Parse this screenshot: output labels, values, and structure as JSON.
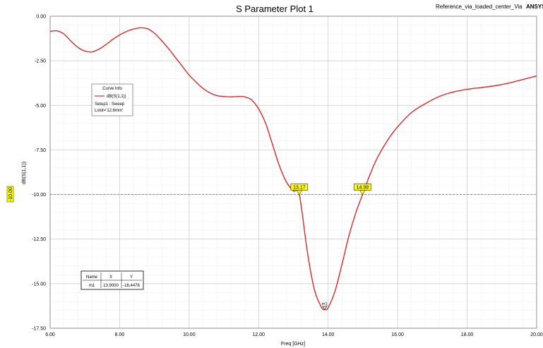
{
  "header": {
    "title": "S Parameter Plot 1",
    "design": "Reference_via_loaded_center_Via",
    "brand": "ANSYS"
  },
  "chart_data": {
    "type": "line",
    "title": "S Parameter Plot 1",
    "xlabel": "Freq [GHz]",
    "ylabel": "dB(S(1,1))",
    "xlim": [
      6.0,
      20.0
    ],
    "ylim": [
      -17.5,
      0.0
    ],
    "x_ticks": [
      "6.00",
      "8.00",
      "10.00",
      "12.00",
      "14.00",
      "16.00",
      "18.00",
      "20.00"
    ],
    "y_ticks": [
      "0.00",
      "-2.50",
      "-5.00",
      "-7.50",
      "-10.00",
      "-12.50",
      "-15.00",
      "-17.50"
    ],
    "grid": true,
    "series": [
      {
        "name": "dB(S(1,1))",
        "color": "#d42a2a",
        "x": [
          6.0,
          6.2,
          6.4,
          6.6,
          6.8,
          7.0,
          7.2,
          7.4,
          7.6,
          7.8,
          8.0,
          8.2,
          8.4,
          8.6,
          8.8,
          9.0,
          9.2,
          9.4,
          9.6,
          9.8,
          10.0,
          10.2,
          10.4,
          10.6,
          10.8,
          11.0,
          11.2,
          11.4,
          11.6,
          11.8,
          12.0,
          12.2,
          12.4,
          12.6,
          12.8,
          13.0,
          13.17,
          13.4,
          13.6,
          13.8,
          13.9,
          14.0,
          14.2,
          14.4,
          14.6,
          14.8,
          14.99,
          15.2,
          15.4,
          15.6,
          15.8,
          16.0,
          16.4,
          16.8,
          17.2,
          17.6,
          18.0,
          18.4,
          18.8,
          19.2,
          19.6,
          20.0
        ],
        "y": [
          -0.85,
          -0.82,
          -1.0,
          -1.4,
          -1.75,
          -1.95,
          -2.0,
          -1.85,
          -1.6,
          -1.3,
          -1.05,
          -0.85,
          -0.72,
          -0.65,
          -0.7,
          -0.95,
          -1.35,
          -1.8,
          -2.3,
          -2.8,
          -3.3,
          -3.7,
          -4.05,
          -4.3,
          -4.45,
          -4.5,
          -4.52,
          -4.5,
          -4.52,
          -4.7,
          -5.2,
          -6.0,
          -7.2,
          -8.4,
          -9.3,
          -9.8,
          -10.0,
          -13.2,
          -15.3,
          -16.3,
          -16.45,
          -16.35,
          -15.4,
          -13.9,
          -12.3,
          -11.0,
          -10.0,
          -8.9,
          -8.0,
          -7.3,
          -6.7,
          -6.2,
          -5.4,
          -4.9,
          -4.5,
          -4.25,
          -4.1,
          -4.0,
          -3.9,
          -3.75,
          -3.55,
          -3.35
        ]
      }
    ],
    "reference_line": {
      "label": "-10.00",
      "y": -10.0
    },
    "crossing_markers": [
      {
        "label": "13.17",
        "x": 13.17,
        "y": -10.0
      },
      {
        "label": "14.99",
        "x": 14.99,
        "y": -10.0
      }
    ],
    "point_marker": {
      "label": "m1",
      "x": 13.9,
      "y": -16.4476
    }
  },
  "curve_info": {
    "title": "Curve Info",
    "series_label": "dB(S(1,1))",
    "setup": "Setup1 : Sweep",
    "param": "Lslot='12.6mm'"
  },
  "marker_table": {
    "headers": [
      "Name",
      "X",
      "Y"
    ],
    "rows": [
      [
        "m1",
        "13.9000",
        "-16.4476"
      ]
    ]
  },
  "colors": {
    "curve": "#d42a2a",
    "marker_fill": "#ffff00",
    "grid_major": "#c8c8c8",
    "grid_minor": "#ececec",
    "ref_line": "#808080"
  }
}
